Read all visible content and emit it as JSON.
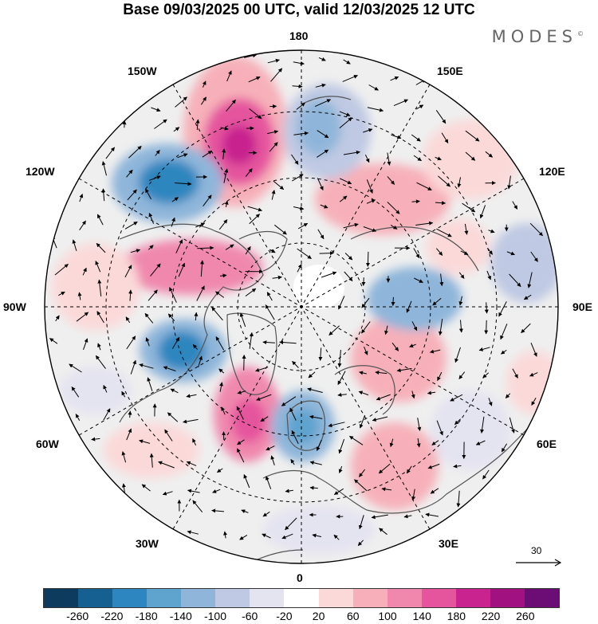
{
  "header": {
    "title": "Base 09/03/2025 00 UTC, valid 12/03/2025 12 UTC",
    "brand": "MODES",
    "brand_mark": "©"
  },
  "map": {
    "projection": "north-polar-stereographic",
    "longitude_labels": {
      "top": "180",
      "bottom": "0",
      "left": "90W",
      "right": "90E",
      "upper_left_1": "150W",
      "upper_left_2": "120W",
      "upper_right_1": "150E",
      "upper_right_2": "120E",
      "lower_left_1": "60W",
      "lower_left_2": "30W",
      "lower_right_1": "60E",
      "lower_right_2": "30E"
    },
    "reference_vector": {
      "value": "30"
    }
  },
  "legend": {
    "colors": [
      "#0d3b5e",
      "#165f91",
      "#2d86bf",
      "#5fa3cf",
      "#8fb6da",
      "#bfc9e3",
      "#e4e3f0",
      "#ffffff",
      "#fbd9d9",
      "#f7b0b9",
      "#f088ad",
      "#e5559e",
      "#c8238f",
      "#a1117f",
      "#6b0d74"
    ],
    "ticks": [
      "-260",
      "-220",
      "-180",
      "-140",
      "-100",
      "-60",
      "-20",
      "20",
      "60",
      "100",
      "140",
      "180",
      "220",
      "260"
    ]
  }
}
